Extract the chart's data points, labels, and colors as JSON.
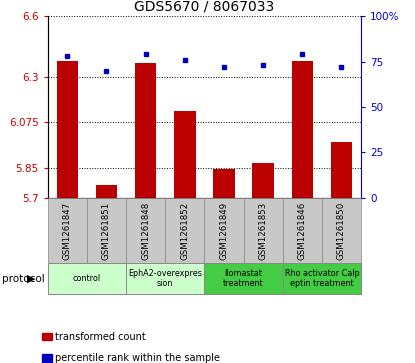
{
  "title": "GDS5670 / 8067033",
  "samples": [
    "GSM1261847",
    "GSM1261851",
    "GSM1261848",
    "GSM1261852",
    "GSM1261849",
    "GSM1261853",
    "GSM1261846",
    "GSM1261850"
  ],
  "transformed_counts": [
    6.38,
    5.765,
    6.37,
    6.13,
    5.845,
    5.875,
    6.38,
    5.975
  ],
  "percentile_ranks": [
    78,
    70,
    79,
    76,
    72,
    73,
    79,
    72
  ],
  "ylim_left": [
    5.7,
    6.6
  ],
  "yticks_left": [
    5.7,
    5.85,
    6.075,
    6.3,
    6.6
  ],
  "ytick_labels_left": [
    "5.7",
    "5.85",
    "6.075",
    "6.3",
    "6.6"
  ],
  "ylim_right": [
    0,
    100
  ],
  "yticks_right": [
    0,
    25,
    50,
    75,
    100
  ],
  "ytick_labels_right": [
    "0",
    "25",
    "50",
    "75",
    "100%"
  ],
  "bar_color": "#bb0000",
  "dot_color": "#0000bb",
  "protocol_groups": [
    {
      "label": "control",
      "indices": [
        0,
        1
      ],
      "color": "#ccffcc"
    },
    {
      "label": "EphA2-overexpres\nsion",
      "indices": [
        2,
        3
      ],
      "color": "#ccffcc"
    },
    {
      "label": "Ilomastat\ntreatment",
      "indices": [
        4,
        5
      ],
      "color": "#44cc44"
    },
    {
      "label": "Rho activator Calp\neptin treatment",
      "indices": [
        6,
        7
      ],
      "color": "#44cc44"
    }
  ],
  "legend_items": [
    {
      "label": "transformed count",
      "color": "#bb0000"
    },
    {
      "label": "percentile rank within the sample",
      "color": "#0000bb"
    }
  ],
  "protocol_label": "protocol",
  "title_fontsize": 10,
  "bar_width": 0.55,
  "sample_box_color": "#c8c8c8",
  "grid_color": "#000000"
}
